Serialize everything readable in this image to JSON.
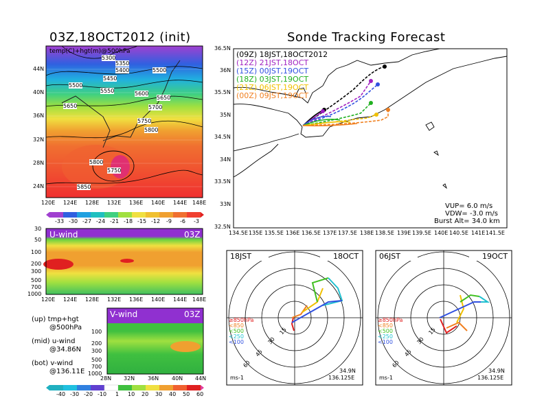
{
  "left_title": "03Z,18OCT2012 (init)",
  "right_title": "Sonde Tracking Forecast",
  "top_map": {
    "label": "temp(C)+hgt(m)@500hPa",
    "lon_ticks": [
      "120E",
      "124E",
      "128E",
      "132E",
      "136E",
      "140E",
      "144E",
      "148E"
    ],
    "lat_ticks": [
      "44N",
      "40N",
      "36N",
      "32N",
      "28N",
      "24N"
    ],
    "height_labels": [
      "5300",
      "5350",
      "5400",
      "5450",
      "5500",
      "5500",
      "5550",
      "5500",
      "5600",
      "5650",
      "5650",
      "5700",
      "5750",
      "5800",
      "5800",
      "5750",
      "5850"
    ],
    "colorbar_ticks": [
      "-33",
      "-30",
      "-27",
      "-24",
      "-21",
      "-18",
      "-15",
      "-12",
      "-9",
      "-6",
      "-3"
    ]
  },
  "uwind": {
    "label": "U-wind",
    "time": "03Z",
    "y_ticks": [
      "30",
      "50",
      "100",
      "200",
      "300",
      "500",
      "700",
      "1000"
    ],
    "x_ticks": [
      "120E",
      "124E",
      "128E",
      "132E",
      "136E",
      "140E",
      "144E",
      "148E"
    ]
  },
  "vwind": {
    "label": "V-wind",
    "time": "03Z",
    "y_ticks": [
      "100",
      "200",
      "300",
      "500",
      "700",
      "1000"
    ],
    "x_ticks": [
      "28N",
      "32N",
      "36N",
      "40N",
      "44N"
    ]
  },
  "notes": {
    "n1a": "(up) tmp+hgt",
    "n1b": "@500hPa",
    "n2a": "(mid) u-wind",
    "n2b": "@34.86N",
    "n3a": "(bot) v-wind",
    "n3b": "@136.11E"
  },
  "wind_colorbar_ticks": [
    "-40",
    "-30",
    "-20",
    "-10",
    "1",
    "10",
    "20",
    "30",
    "40",
    "50",
    "60"
  ],
  "track_map": {
    "lat_ticks": [
      "36.5N",
      "36N",
      "35.5N",
      "35N",
      "34.5N",
      "34N",
      "33.5N",
      "33N",
      "32.5N"
    ],
    "lon_ticks": [
      "134.5E",
      "135E",
      "135.5E",
      "136E",
      "136.5E",
      "137E",
      "137.5E",
      "138E",
      "138.5E",
      "139E",
      "139.5E",
      "140E",
      "140.5E",
      "141E",
      "141.5E"
    ],
    "legend": [
      {
        "text": "(09Z)  18JST,18OCT2012",
        "color": "#000000"
      },
      {
        "text": "(12Z)  21JST,18OCT",
        "color": "#a020c0"
      },
      {
        "text": "(15Z)  00JST,19OCT",
        "color": "#3050e0"
      },
      {
        "text": "(18Z)  03JST,19OCT",
        "color": "#20b020"
      },
      {
        "text": "(21Z)  06JST,19OCT",
        "color": "#f0c000"
      },
      {
        "text": "(00Z)  09JST,19OCT",
        "color": "#f08020"
      }
    ],
    "vup": "VUP=  6.0  m/s",
    "vdw": "VDW=  -3.0  m/s",
    "burst": "Burst Alt=  34.0  km"
  },
  "hodo_left": {
    "time": "18JST",
    "date": "18OCT",
    "ring_labels": [
      "15",
      "30",
      "45",
      "60"
    ],
    "unit": "ms-1",
    "lat": "34.9N",
    "lon": "136.125E",
    "levels": [
      "≥850hPa",
      "<850",
      "<500",
      "<250",
      "<100"
    ]
  },
  "hodo_right": {
    "time": "06JST",
    "date": "19OCT",
    "ring_labels": [
      "15",
      "30",
      "45",
      "60"
    ],
    "unit": "ms-1",
    "lat": "34.9N",
    "lon": "136.125E",
    "levels": [
      "≥850hPa",
      "<850",
      "<500",
      "<250",
      "<100"
    ]
  },
  "level_colors": [
    "#e02020",
    "#f08020",
    "#40c020",
    "#20c0d0",
    "#3050e0"
  ]
}
